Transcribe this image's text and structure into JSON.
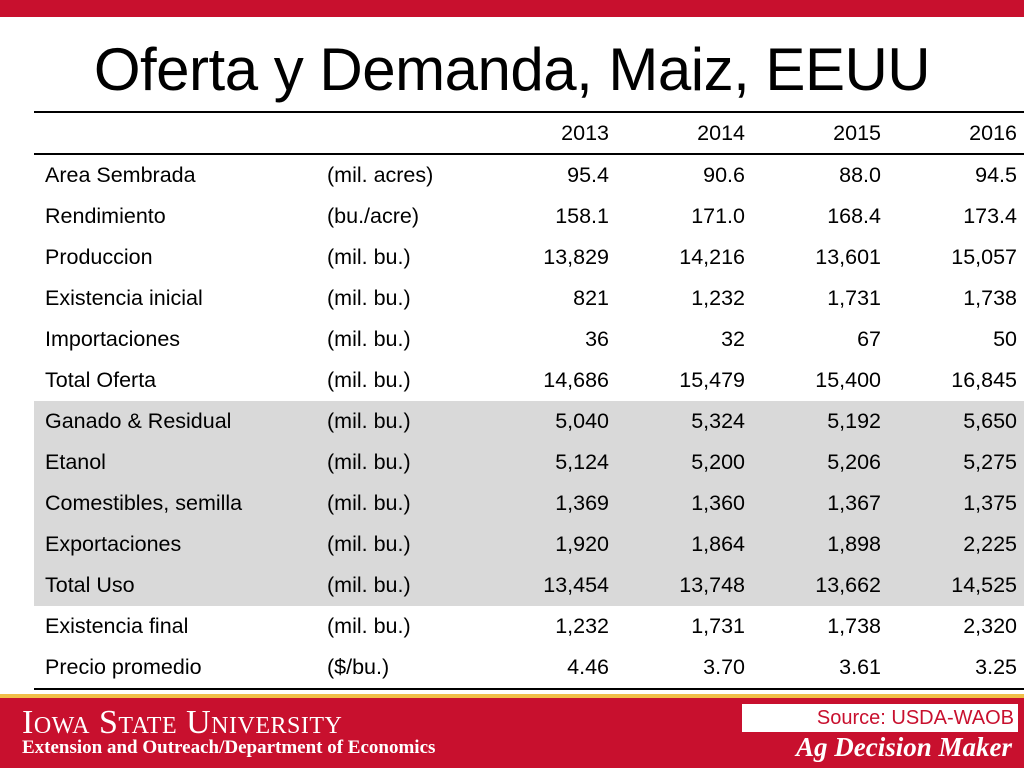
{
  "slide": {
    "title": "Oferta y Demanda, Maiz, EEUU"
  },
  "table": {
    "years": [
      "2013",
      "2014",
      "2015",
      "2016"
    ],
    "rows": [
      {
        "name": "Area Sembrada",
        "unit": "(mil. acres)",
        "values": [
          "95.4",
          "90.6",
          "88.0",
          "94.5"
        ]
      },
      {
        "name": "Rendimiento",
        "unit": "(bu./acre)",
        "values": [
          "158.1",
          "171.0",
          "168.4",
          "173.4"
        ]
      },
      {
        "name": "Produccion",
        "unit": "(mil. bu.)",
        "values": [
          "13,829",
          "14,216",
          "13,601",
          "15,057"
        ]
      },
      {
        "name": "Existencia inicial",
        "unit": "(mil. bu.)",
        "values": [
          "821",
          "1,232",
          "1,731",
          "1,738"
        ]
      },
      {
        "name": "Importaciones",
        "unit": "(mil. bu.)",
        "values": [
          "36",
          "32",
          "67",
          "50"
        ]
      },
      {
        "name": "Total Oferta",
        "unit": "(mil. bu.)",
        "values": [
          "14,686",
          "15,479",
          "15,400",
          "16,845"
        ]
      },
      {
        "name": "Ganado & Residual",
        "unit": "(mil. bu.)",
        "values": [
          "5,040",
          "5,324",
          "5,192",
          "5,650"
        ]
      },
      {
        "name": "Etanol",
        "unit": "(mil. bu.)",
        "values": [
          "5,124",
          "5,200",
          "5,206",
          "5,275"
        ]
      },
      {
        "name": "Comestibles, semilla",
        "unit": "(mil. bu.)",
        "values": [
          "1,369",
          "1,360",
          "1,367",
          "1,375"
        ]
      },
      {
        "name": "Exportaciones",
        "unit": "(mil. bu.)",
        "values": [
          "1,920",
          "1,864",
          "1,898",
          "2,225"
        ]
      },
      {
        "name": "Total Uso",
        "unit": "(mil. bu.)",
        "values": [
          "13,454",
          "13,748",
          "13,662",
          "14,525"
        ]
      },
      {
        "name": "Existencia final",
        "unit": "(mil. bu.)",
        "values": [
          "1,232",
          "1,731",
          "1,738",
          "2,320"
        ]
      },
      {
        "name": "Precio promedio",
        "unit": "($/bu.)",
        "values": [
          "4.46",
          "3.70",
          "3.61",
          "3.25"
        ]
      }
    ]
  },
  "footer": {
    "university": "Iowa State University",
    "department": "Extension and Outreach/Department of Economics",
    "source": "Source: USDA-WAOB",
    "brand": "Ag Decision Maker"
  },
  "colors": {
    "accent_red": "#c8102e",
    "accent_gold": "#f1be48",
    "row_shade": "#d9d9d9"
  }
}
